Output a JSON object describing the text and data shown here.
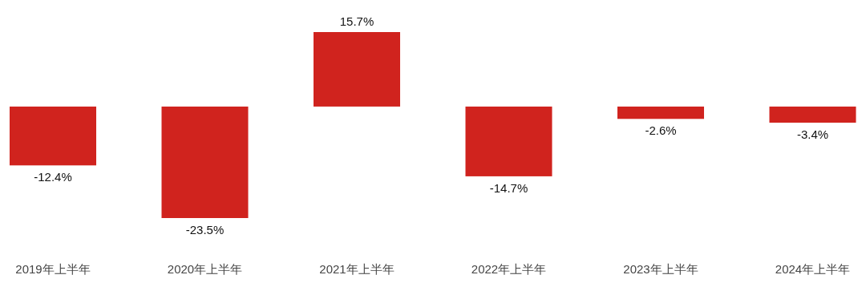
{
  "chart_data": {
    "type": "bar",
    "categories": [
      "2019年上半年",
      "2020年上半年",
      "2021年上半年",
      "2022年上半年",
      "2023年上半年",
      "2024年上半年"
    ],
    "values": [
      -12.4,
      -23.5,
      15.7,
      -14.7,
      -2.6,
      -3.4
    ],
    "value_labels": [
      "-12.4%",
      "-23.5%",
      "15.7%",
      "-14.7%",
      "-2.6%",
      "-3.4%"
    ],
    "color": "#d0231e"
  }
}
